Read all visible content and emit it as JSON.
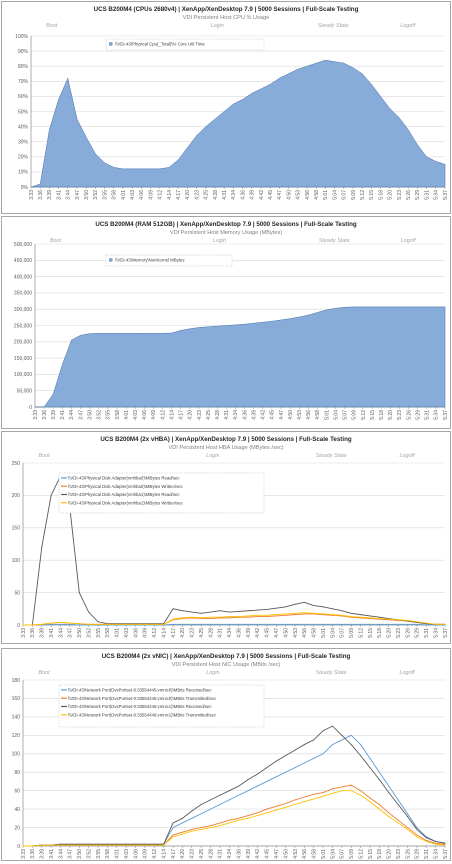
{
  "chart_data": [
    {
      "type": "area",
      "title": "UCS B200M4 (CPUs 2680v4) | XenApp/XenDesktop 7.9 | 5000 Sessions | Full-Scale Testing",
      "subtitle": "VDI Persistent Host CPU % Usage",
      "phases": [
        "Boot",
        "Login",
        "Steady State",
        "Logoff"
      ],
      "categories": [
        "3:33",
        "3:36",
        "3:39",
        "3:41",
        "3:44",
        "3:47",
        "3:50",
        "3:52",
        "3:55",
        "3:58",
        "4:01",
        "4:03",
        "4:06",
        "4:09",
        "4:12",
        "4:14",
        "4:17",
        "4:20",
        "4:23",
        "4:25",
        "4:28",
        "4:31",
        "4:34",
        "4:36",
        "4:39",
        "4:42",
        "4:45",
        "4:47",
        "4:50",
        "4:53",
        "4:56",
        "4:58",
        "5:01",
        "5:04",
        "5:07",
        "5:09",
        "5:12",
        "5:15",
        "5:18",
        "5:20",
        "5:23",
        "5:26",
        "5:29",
        "5:31",
        "5:34",
        "5:37"
      ],
      "y_ticks": [
        "0%",
        "10%",
        "20%",
        "30%",
        "40%",
        "50%",
        "60%",
        "70%",
        "80%",
        "90%",
        "100%"
      ],
      "ylim": [
        0,
        100
      ],
      "series": [
        {
          "name": "\\\\VDI-43\\Physical Cpu(_Total)\\% Core Util Time",
          "color": "#7aa3d6",
          "values": [
            0,
            2,
            38,
            58,
            72,
            45,
            33,
            22,
            16,
            13,
            12,
            12,
            12,
            12,
            12,
            13,
            18,
            26,
            34,
            40,
            45,
            50,
            55,
            58,
            62,
            65,
            68,
            72,
            75,
            78,
            80,
            82,
            84,
            83,
            82,
            79,
            75,
            68,
            60,
            52,
            46,
            38,
            28,
            20,
            17,
            15
          ]
        }
      ]
    },
    {
      "type": "area",
      "title": "UCS B200M4 (RAM 512GB) | XenApp/XenDesktop 7.9 | 5000 Sessions | Full-Scale Testing",
      "subtitle": "VDI Persistent Host Memory Usage (MBytes)",
      "phases": [
        "Boot",
        "Login",
        "Steady State",
        "Logoff"
      ],
      "categories": [
        "3:33",
        "3:36",
        "3:39",
        "3:41",
        "3:44",
        "3:47",
        "3:50",
        "3:52",
        "3:55",
        "3:58",
        "4:01",
        "4:03",
        "4:06",
        "4:09",
        "4:12",
        "4:14",
        "4:17",
        "4:20",
        "4:23",
        "4:25",
        "4:28",
        "4:31",
        "4:34",
        "4:36",
        "4:39",
        "4:42",
        "4:45",
        "4:47",
        "4:50",
        "4:53",
        "4:56",
        "4:58",
        "5:01",
        "5:04",
        "5:07",
        "5:09",
        "5:12",
        "5:15",
        "5:18",
        "5:20",
        "5:23",
        "5:26",
        "5:29",
        "5:31",
        "5:34",
        "5:37"
      ],
      "y_ticks": [
        "0",
        "50,000",
        "100,000",
        "150,000",
        "200,000",
        "250,000",
        "300,000",
        "350,000",
        "400,000",
        "450,000",
        "500,000"
      ],
      "ylim": [
        0,
        500000
      ],
      "series": [
        {
          "name": "\\\\VDI-43\\Memory\\NonKernel MBytes",
          "color": "#7aa3d6",
          "values": [
            0,
            0,
            40000,
            130000,
            205000,
            220000,
            225000,
            226000,
            226000,
            226000,
            226000,
            226000,
            226000,
            226000,
            226000,
            227000,
            235000,
            240000,
            244000,
            246000,
            248000,
            250000,
            252000,
            254000,
            257000,
            260000,
            263000,
            267000,
            271000,
            276000,
            282000,
            290000,
            298000,
            303000,
            306000,
            307000,
            307000,
            307000,
            307000,
            307000,
            307000,
            307000,
            307000,
            307000,
            307000,
            307000
          ]
        }
      ]
    },
    {
      "type": "line",
      "title": "UCS B200M4 (2x vHBA) | XenApp/XenDesktop 7.9 | 5000 Sessions | Full-Scale Testing",
      "subtitle": "VDI Persistent Host HBA Usage (MBytes /sec)",
      "phases": [
        "Boot",
        "Login",
        "Steady State",
        "Logoff"
      ],
      "categories": [
        "3:33",
        "3:36",
        "3:39",
        "3:41",
        "3:44",
        "3:47",
        "3:50",
        "3:52",
        "3:55",
        "3:58",
        "4:01",
        "4:03",
        "4:06",
        "4:09",
        "4:12",
        "4:14",
        "4:17",
        "4:20",
        "4:23",
        "4:25",
        "4:28",
        "4:31",
        "4:34",
        "4:36",
        "4:39",
        "4:42",
        "4:45",
        "4:47",
        "4:50",
        "4:53",
        "4:56",
        "4:58",
        "5:01",
        "5:04",
        "5:07",
        "5:09",
        "5:12",
        "5:15",
        "5:18",
        "5:20",
        "5:23",
        "5:26",
        "5:29",
        "5:31",
        "5:34",
        "5:37"
      ],
      "y_ticks": [
        "0",
        "50",
        "100",
        "150",
        "200",
        "250"
      ],
      "ylim": [
        0,
        250
      ],
      "series": [
        {
          "name": "\\\\VDI-43\\Physical Disk Adapter(vmhba0)\\MBytes Read/sec",
          "color": "#5b9bd5",
          "values": [
            0,
            0,
            0,
            1,
            1,
            1,
            0,
            0,
            0,
            0,
            0,
            0,
            0,
            0,
            0,
            0,
            1,
            1,
            1,
            1,
            1,
            1,
            1,
            1,
            1,
            1,
            1,
            1,
            1,
            1,
            1,
            1,
            1,
            1,
            1,
            1,
            1,
            1,
            1,
            1,
            1,
            1,
            1,
            0,
            0,
            0
          ]
        },
        {
          "name": "\\\\VDI-43\\Physical Disk Adapter(vmhba0)\\MBytes Written/sec",
          "color": "#ed7d31",
          "values": [
            0,
            0,
            1,
            3,
            4,
            3,
            2,
            1,
            1,
            1,
            1,
            1,
            1,
            1,
            1,
            1,
            8,
            10,
            11,
            10,
            10,
            11,
            11,
            12,
            12,
            13,
            13,
            14,
            15,
            16,
            17,
            17,
            16,
            15,
            14,
            12,
            11,
            10,
            9,
            8,
            7,
            6,
            4,
            2,
            1,
            1
          ]
        },
        {
          "name": "\\\\VDI-43\\Physical Disk Adapter(vmhba1)\\MBytes Read/sec",
          "color": "#595959",
          "values": [
            0,
            0,
            120,
            200,
            230,
            180,
            50,
            20,
            5,
            2,
            2,
            2,
            2,
            2,
            2,
            2,
            25,
            22,
            20,
            18,
            20,
            22,
            20,
            21,
            22,
            23,
            24,
            26,
            28,
            32,
            35,
            30,
            28,
            25,
            22,
            18,
            16,
            14,
            12,
            10,
            8,
            6,
            4,
            2,
            1,
            1
          ]
        },
        {
          "name": "\\\\VDI-43\\Physical Disk Adapter(vmhba1)\\MBytes Written/sec",
          "color": "#ffc000",
          "values": [
            0,
            0,
            1,
            3,
            4,
            3,
            2,
            1,
            1,
            1,
            1,
            1,
            1,
            1,
            1,
            1,
            9,
            11,
            12,
            11,
            12,
            12,
            13,
            13,
            14,
            15,
            15,
            16,
            17,
            18,
            19,
            18,
            17,
            16,
            15,
            13,
            12,
            11,
            10,
            9,
            8,
            7,
            5,
            3,
            1,
            1
          ]
        }
      ]
    },
    {
      "type": "line",
      "title": "UCS B200M4 (2x vNIC) | XenApp/XenDesktop 7.9 | 5000 Sessions | Full-Scale Testing",
      "subtitle": "VDI Persistent Host NIC Usage (MBits /sec)",
      "phases": [
        "Boot",
        "Login",
        "Steady State",
        "Logoff"
      ],
      "categories": [
        "3:33",
        "3:36",
        "3:39",
        "3:41",
        "3:44",
        "3:47",
        "3:50",
        "3:52",
        "3:55",
        "3:58",
        "4:01",
        "4:03",
        "4:06",
        "4:09",
        "4:12",
        "4:14",
        "4:17",
        "4:20",
        "4:23",
        "4:25",
        "4:28",
        "4:31",
        "4:34",
        "4:36",
        "4:39",
        "4:42",
        "4:45",
        "4:47",
        "4:50",
        "4:53",
        "4:56",
        "4:58",
        "5:01",
        "5:04",
        "5:07",
        "5:09",
        "5:12",
        "5:15",
        "5:18",
        "5:20",
        "5:23",
        "5:26",
        "5:29",
        "5:31",
        "5:34",
        "5:37"
      ],
      "y_ticks": [
        "0",
        "20",
        "40",
        "60",
        "80",
        "100",
        "120",
        "140",
        "160",
        "180"
      ],
      "ylim": [
        0,
        180
      ],
      "series": [
        {
          "name": "\\\\VDI-43\\Network Port(DvsPortset-0:33554445:vmnic0)\\MBits Received/sec",
          "color": "#5b9bd5",
          "values": [
            0,
            0,
            1,
            1,
            2,
            2,
            2,
            2,
            2,
            2,
            2,
            2,
            2,
            2,
            2,
            2,
            20,
            25,
            30,
            35,
            40,
            45,
            50,
            55,
            60,
            65,
            70,
            75,
            80,
            85,
            90,
            95,
            100,
            110,
            115,
            120,
            110,
            95,
            80,
            65,
            50,
            35,
            20,
            10,
            5,
            3
          ]
        },
        {
          "name": "\\\\VDI-43\\Network Port(DvsPortset-0:33554445:vmnic0)\\MBits Transmitted/sec",
          "color": "#ed7d31",
          "values": [
            0,
            0,
            1,
            1,
            1,
            1,
            1,
            1,
            1,
            1,
            1,
            1,
            1,
            1,
            1,
            1,
            12,
            15,
            18,
            20,
            22,
            25,
            28,
            30,
            33,
            36,
            40,
            43,
            46,
            50,
            53,
            56,
            58,
            62,
            64,
            66,
            60,
            52,
            45,
            36,
            28,
            20,
            12,
            6,
            3,
            2
          ]
        },
        {
          "name": "\\\\VDI-43\\Network Port(DvsPortset-0:33554446:vmnic1)\\MBits Received/sec",
          "color": "#595959",
          "values": [
            0,
            0,
            1,
            1,
            2,
            2,
            2,
            2,
            2,
            2,
            2,
            2,
            2,
            2,
            2,
            2,
            25,
            30,
            38,
            45,
            50,
            55,
            60,
            65,
            72,
            78,
            85,
            92,
            98,
            104,
            110,
            115,
            125,
            130,
            120,
            110,
            98,
            85,
            72,
            58,
            45,
            32,
            18,
            9,
            5,
            3
          ]
        },
        {
          "name": "\\\\VDI-43\\Network Port(DvsPortset-0:33554446:vmnic1)\\MBits Transmitted/sec",
          "color": "#ffc000",
          "values": [
            0,
            0,
            1,
            1,
            1,
            1,
            1,
            1,
            1,
            1,
            1,
            1,
            1,
            1,
            1,
            1,
            10,
            13,
            16,
            18,
            20,
            22,
            25,
            28,
            30,
            33,
            36,
            39,
            42,
            45,
            48,
            51,
            54,
            57,
            60,
            60,
            55,
            48,
            40,
            32,
            25,
            18,
            10,
            5,
            2,
            1
          ]
        }
      ]
    }
  ]
}
